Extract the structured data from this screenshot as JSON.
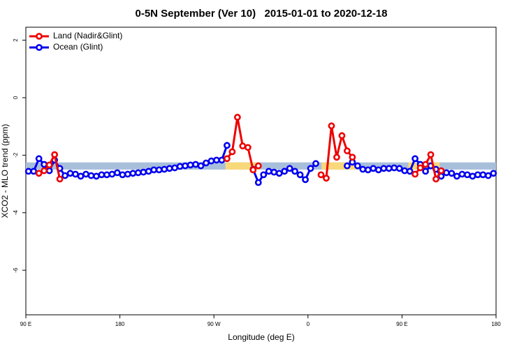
{
  "chart_data": {
    "type": "line",
    "title": "0-5N September (Ver 10)   2015-01-01 to 2020-12-18",
    "x_label": "Longitude (deg E)",
    "y_label": "XCO2 - MLO trend (ppm)",
    "xlim": [
      90,
      540
    ],
    "xticks": [
      {
        "value": 90,
        "label": "90 E"
      },
      {
        "value": 180,
        "label": "180"
      },
      {
        "value": 270,
        "label": "90 W"
      },
      {
        "value": 360,
        "label": "0"
      },
      {
        "value": 450,
        "label": "90 E"
      },
      {
        "value": 540,
        "label": "180"
      }
    ],
    "ylim": [
      -7.55,
      2.45
    ],
    "yticks": [
      -6,
      -4,
      -2,
      0,
      2
    ],
    "legend": "top-left",
    "bands": [
      {
        "x": [
          90,
          540
        ],
        "y": [
          -2.5,
          -2.25
        ],
        "color": "#a8bfdc"
      },
      {
        "x": [
          281,
          314
        ],
        "y": [
          -2.5,
          -2.25
        ],
        "color": "#f9d87a"
      },
      {
        "x": [
          373,
          406
        ],
        "y": [
          -2.5,
          -2.25
        ],
        "color": "#f9d87a"
      },
      {
        "x": [
          456,
          466
        ],
        "y": [
          -2.5,
          -2.25
        ],
        "color": "#f9d87a"
      },
      {
        "x": [
          480,
          486
        ],
        "y": [
          -2.5,
          -2.25
        ],
        "color": "#f9d87a"
      }
    ],
    "x": [
      92.5,
      97.5,
      102.5,
      107.5,
      112.5,
      117.5,
      122.5,
      127.5,
      132.5,
      137.5,
      142.5,
      147.5,
      152.5,
      157.5,
      162.5,
      167.5,
      172.5,
      177.5,
      182.5,
      187.5,
      192.5,
      197.5,
      202.5,
      207.5,
      212.5,
      217.5,
      222.5,
      227.5,
      232.5,
      237.5,
      242.5,
      247.5,
      252.5,
      257.5,
      262.5,
      267.5,
      272.5,
      277.5,
      282.5,
      287.5,
      292.5,
      297.5,
      302.5,
      307.5,
      312.5,
      317.5,
      322.5,
      327.5,
      332.5,
      337.5,
      342.5,
      347.5,
      352.5,
      357.5,
      362.5,
      367.5,
      372.5,
      377.5,
      382.5,
      387.5,
      392.5,
      397.5,
      402.5,
      407.5,
      412.5,
      417.5,
      422.5,
      427.5,
      432.5,
      437.5,
      442.5,
      447.5,
      452.5,
      457.5,
      462.5,
      467.5,
      472.5,
      477.5,
      482.5,
      487.5,
      492.5,
      497.5,
      502.5,
      507.5,
      512.5,
      517.5,
      522.5,
      527.5,
      532.5,
      537.5
    ],
    "series": [
      {
        "name": "Ocean (Glint)",
        "color": "#0000ee",
        "values": [
          -2.56,
          -2.56,
          -2.12,
          -2.32,
          -2.54,
          -2.17,
          -2.46,
          -2.71,
          -2.63,
          -2.66,
          -2.73,
          -2.66,
          -2.71,
          -2.73,
          -2.68,
          -2.68,
          -2.66,
          -2.61,
          -2.68,
          -2.66,
          -2.63,
          -2.61,
          -2.59,
          -2.56,
          -2.51,
          -2.51,
          -2.49,
          -2.46,
          -2.44,
          -2.39,
          -2.37,
          -2.34,
          -2.32,
          -2.37,
          -2.27,
          -2.2,
          -2.17,
          -2.17,
          -1.66,
          null,
          null,
          null,
          null,
          -2.49,
          -2.95,
          -2.68,
          -2.56,
          -2.59,
          -2.63,
          -2.56,
          -2.46,
          -2.56,
          -2.68,
          -2.85,
          -2.46,
          -2.29,
          null,
          null,
          null,
          null,
          null,
          -2.37,
          -2.24,
          -2.37,
          -2.49,
          -2.51,
          -2.46,
          -2.51,
          -2.46,
          -2.46,
          -2.44,
          -2.46,
          -2.54,
          -2.56,
          -2.12,
          -2.32,
          -2.56,
          -2.37,
          -2.49,
          -2.73,
          -2.61,
          -2.63,
          -2.73,
          -2.66,
          -2.68,
          -2.73,
          -2.68,
          -2.68,
          -2.71,
          -2.63
        ]
      },
      {
        "name": "Land (Nadir&Glint)",
        "color": "#ee0000",
        "values": [
          null,
          null,
          -2.63,
          -2.54,
          -2.34,
          -1.98,
          -2.83,
          null,
          null,
          null,
          null,
          null,
          null,
          null,
          null,
          null,
          null,
          null,
          null,
          null,
          null,
          null,
          null,
          null,
          null,
          null,
          null,
          null,
          null,
          null,
          null,
          null,
          null,
          null,
          null,
          null,
          null,
          null,
          -2.12,
          -1.88,
          -0.68,
          -1.68,
          -1.73,
          -2.51,
          -2.37,
          null,
          null,
          null,
          null,
          null,
          null,
          null,
          null,
          null,
          null,
          null,
          -2.68,
          -2.8,
          -0.98,
          -2.07,
          -1.32,
          -1.85,
          -2.07,
          null,
          null,
          null,
          null,
          null,
          null,
          null,
          null,
          null,
          null,
          null,
          -2.66,
          -2.44,
          -2.32,
          -1.98,
          -2.83,
          -2.54,
          null,
          null,
          null,
          null,
          null,
          null,
          null,
          null,
          null,
          null
        ]
      }
    ]
  }
}
